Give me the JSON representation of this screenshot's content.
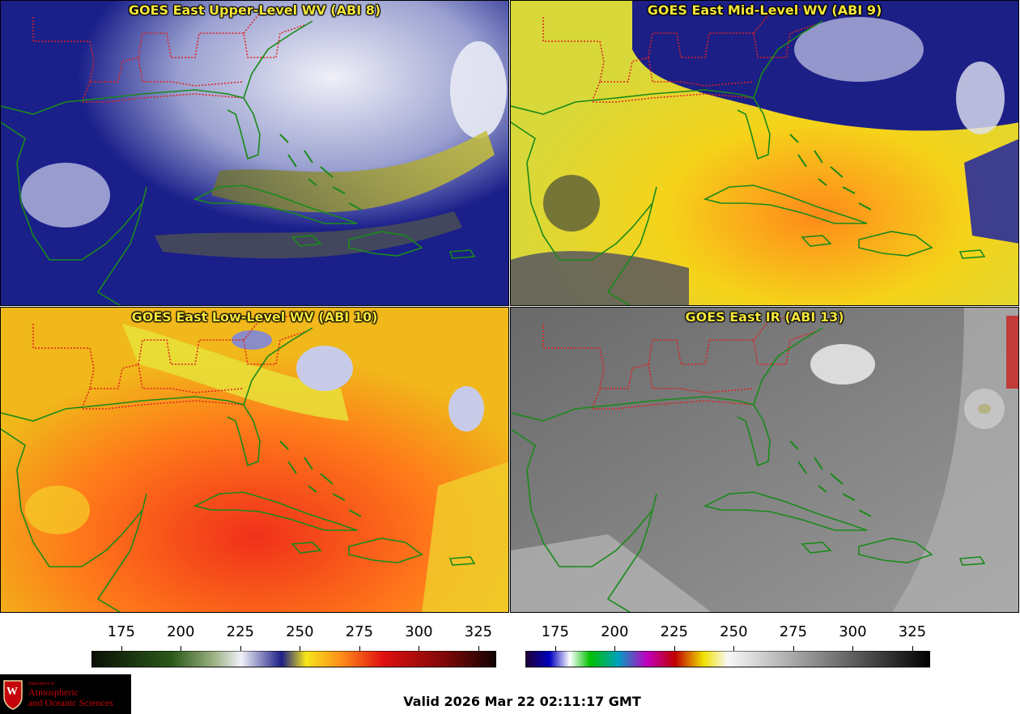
{
  "panels": [
    {
      "title": "GOES East Upper-Level WV (ABI 8)"
    },
    {
      "title": "GOES East Mid-Level WV (ABI 9)"
    },
    {
      "title": "GOES East Low-Level WV (ABI 10)"
    },
    {
      "title": "GOES East IR (ABI 13)"
    }
  ],
  "colorbars": [
    {
      "name": "wv",
      "ticks": [
        "175",
        "200",
        "225",
        "250",
        "275",
        "300",
        "325"
      ]
    },
    {
      "name": "ir",
      "ticks": [
        "175",
        "200",
        "225",
        "250",
        "275",
        "300",
        "325"
      ]
    }
  ],
  "valid_time": "Valid 2026 Mar 22 02:11:17 GMT",
  "logo": {
    "dept": "Department of",
    "line1": "Atmospheric",
    "line2": "and Oceanic Sciences",
    "letter": "W"
  },
  "colors": {
    "title": "#f5e63a",
    "coastline": "#1a8a1a",
    "state_borders": "#e02020"
  }
}
